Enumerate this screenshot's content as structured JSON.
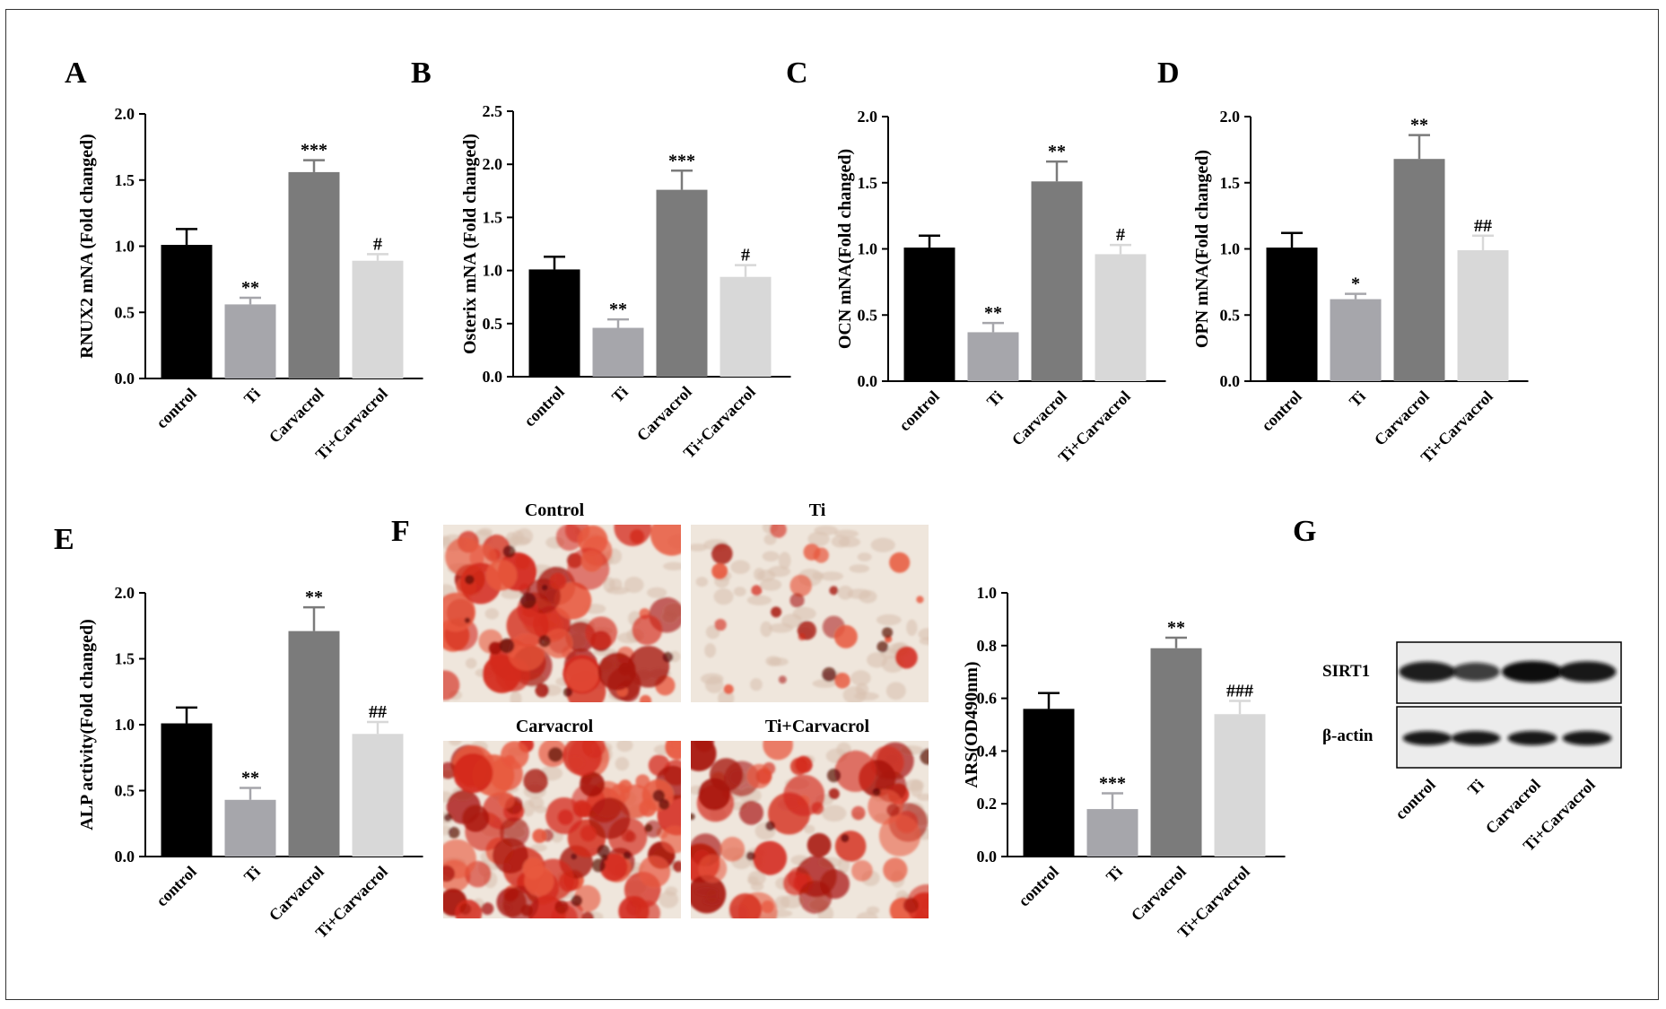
{
  "colors": {
    "control": "#000000",
    "Ti": "#a6a6ab",
    "Carvacrol": "#7b7b7b",
    "TiCarvacrol": "#d8d8d8",
    "stain": "#d42a1c"
  },
  "categories": [
    "control",
    "Ti",
    "Carvacrol",
    "Ti+Carvacrol"
  ],
  "chart_data": [
    {
      "panel": "A",
      "type": "bar",
      "ylabel": "RNUX2 mNA (Fold changed)",
      "ylim": [
        0,
        2.0
      ],
      "yticks": [
        "0.0",
        "0.5",
        "1.0",
        "1.5",
        "2.0"
      ],
      "categories": [
        "control",
        "Ti",
        "Carvacrol",
        "Ti+Carvacrol"
      ],
      "values": [
        1.01,
        0.56,
        1.56,
        0.89
      ],
      "errors": [
        0.12,
        0.05,
        0.09,
        0.05
      ],
      "annotations": [
        "",
        "**",
        "***",
        "#"
      ]
    },
    {
      "panel": "B",
      "type": "bar",
      "ylabel": "Osterix mNA (Fold changed)",
      "ylim": [
        0,
        2.5
      ],
      "yticks": [
        "0.0",
        "0.5",
        "1.0",
        "1.5",
        "2.0",
        "2.5"
      ],
      "categories": [
        "control",
        "Ti",
        "Carvacrol",
        "Ti+Carvacrol"
      ],
      "values": [
        1.01,
        0.46,
        1.76,
        0.94
      ],
      "errors": [
        0.12,
        0.08,
        0.18,
        0.11
      ],
      "annotations": [
        "",
        "**",
        "***",
        "#"
      ]
    },
    {
      "panel": "C",
      "type": "bar",
      "ylabel": "OCN mNA(Fold changed)",
      "ylim": [
        0,
        2.0
      ],
      "yticks": [
        "0.0",
        "0.5",
        "1.0",
        "1.5",
        "2.0"
      ],
      "categories": [
        "control",
        "Ti",
        "Carvacrol",
        "Ti+Carvacrol"
      ],
      "values": [
        1.01,
        0.37,
        1.51,
        0.96
      ],
      "errors": [
        0.09,
        0.07,
        0.15,
        0.07
      ],
      "annotations": [
        "",
        "**",
        "**",
        "#"
      ]
    },
    {
      "panel": "D",
      "type": "bar",
      "ylabel": "OPN mNA(Fold changed)",
      "ylim": [
        0,
        2.0
      ],
      "yticks": [
        "0.0",
        "0.5",
        "1.0",
        "1.5",
        "2.0"
      ],
      "categories": [
        "control",
        "Ti",
        "Carvacrol",
        "Ti+Carvacrol"
      ],
      "values": [
        1.01,
        0.62,
        1.68,
        0.99
      ],
      "errors": [
        0.11,
        0.04,
        0.18,
        0.11
      ],
      "annotations": [
        "",
        "*",
        "**",
        "##"
      ]
    },
    {
      "panel": "E",
      "type": "bar",
      "ylabel": "ALP activity(Fold changed)",
      "ylim": [
        0,
        2.0
      ],
      "yticks": [
        "0.0",
        "0.5",
        "1.0",
        "1.5",
        "2.0"
      ],
      "categories": [
        "control",
        "Ti",
        "Carvacrol",
        "Ti+Carvacrol"
      ],
      "values": [
        1.01,
        0.43,
        1.71,
        0.93
      ],
      "errors": [
        0.12,
        0.09,
        0.18,
        0.09
      ],
      "annotations": [
        "",
        "**",
        "**",
        "##"
      ]
    },
    {
      "panel": "F",
      "type": "bar",
      "ylabel": "ARS(OD490nm)",
      "ylim": [
        0,
        1.0
      ],
      "yticks": [
        "0.0",
        "0.2",
        "0.4",
        "0.6",
        "0.8",
        "1.0"
      ],
      "categories": [
        "control",
        "Ti",
        "Carvacrol",
        "Ti+Carvacrol"
      ],
      "values": [
        0.56,
        0.18,
        0.79,
        0.54
      ],
      "errors": [
        0.06,
        0.06,
        0.04,
        0.05
      ],
      "annotations": [
        "",
        "***",
        "**",
        "###"
      ]
    }
  ],
  "panel_letters": {
    "F": "F",
    "G": "G"
  },
  "stain_images": [
    "Control",
    "Ti",
    "Carvacrol",
    "Ti+Carvacrol"
  ],
  "western_blot": {
    "bands": [
      "SIRT1",
      "β-actin"
    ],
    "lanes": [
      "control",
      "Ti",
      "Carvacrol",
      "Ti+Carvacrol"
    ],
    "sirt1_intensity": [
      0.85,
      0.55,
      1.0,
      0.9
    ],
    "actin_intensity": [
      0.9,
      0.9,
      0.9,
      0.9
    ]
  }
}
